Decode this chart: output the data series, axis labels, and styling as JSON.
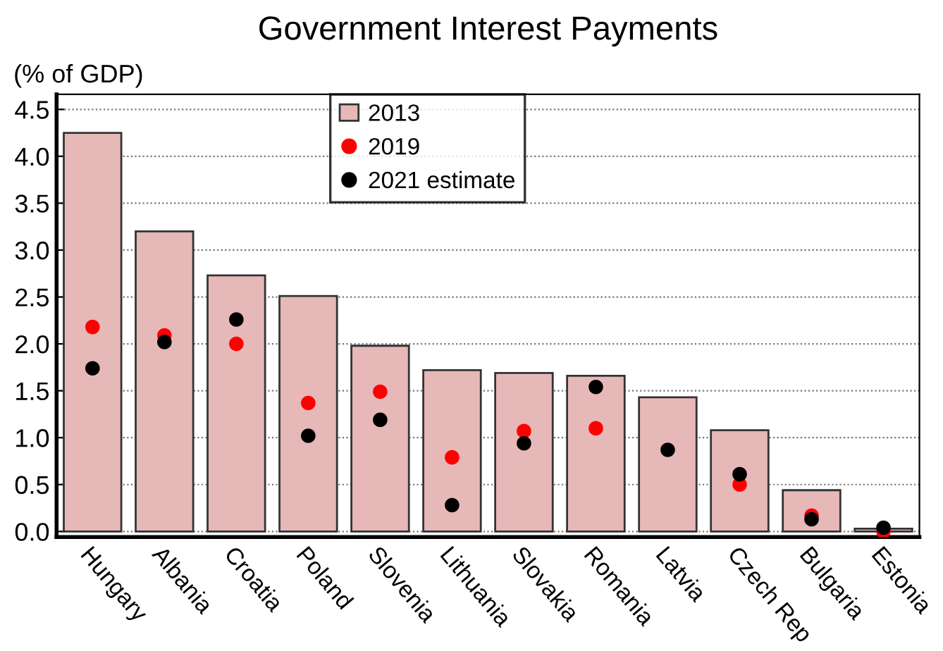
{
  "chart_data": {
    "type": "bar",
    "title": "Government Interest Payments",
    "ylabel": "(% of GDP)",
    "categories": [
      "Hungary",
      "Albania",
      "Croatia",
      "Poland",
      "Slovenia",
      "Lithuania",
      "Slovakia",
      "Romania",
      "Latvia",
      "Czech Rep",
      "Bulgaria",
      "Estonia"
    ],
    "series": [
      {
        "name": "2013",
        "color": "#e6b8b8",
        "values": [
          4.25,
          3.2,
          2.73,
          2.51,
          1.98,
          1.72,
          1.69,
          1.66,
          1.43,
          1.08,
          0.44,
          0.03
        ]
      },
      {
        "name": "2019",
        "type": "scatter",
        "color": "#ff0000",
        "values": [
          2.18,
          2.09,
          2.0,
          1.37,
          1.49,
          0.79,
          1.07,
          1.1,
          null,
          0.5,
          0.17,
          0.0
        ]
      },
      {
        "name": "2021 estimate",
        "type": "scatter",
        "color": "#000000",
        "values": [
          1.74,
          2.02,
          2.26,
          1.02,
          1.19,
          0.28,
          0.94,
          1.54,
          0.87,
          0.61,
          0.13,
          0.04
        ]
      }
    ],
    "ylim": [
      -0.06,
      4.66
    ],
    "yticks": [
      {
        "value": 0,
        "label": "0.0"
      },
      0.5,
      {
        "value": 1,
        "label": "1.0"
      },
      1.5,
      {
        "value": 2,
        "label": "2.0"
      },
      2.5,
      {
        "value": 3,
        "label": "3.0"
      },
      3.5,
      {
        "value": 4,
        "label": "4.0"
      },
      4.5
    ],
    "grid": "y",
    "legend": "top",
    "marker": "circle"
  }
}
